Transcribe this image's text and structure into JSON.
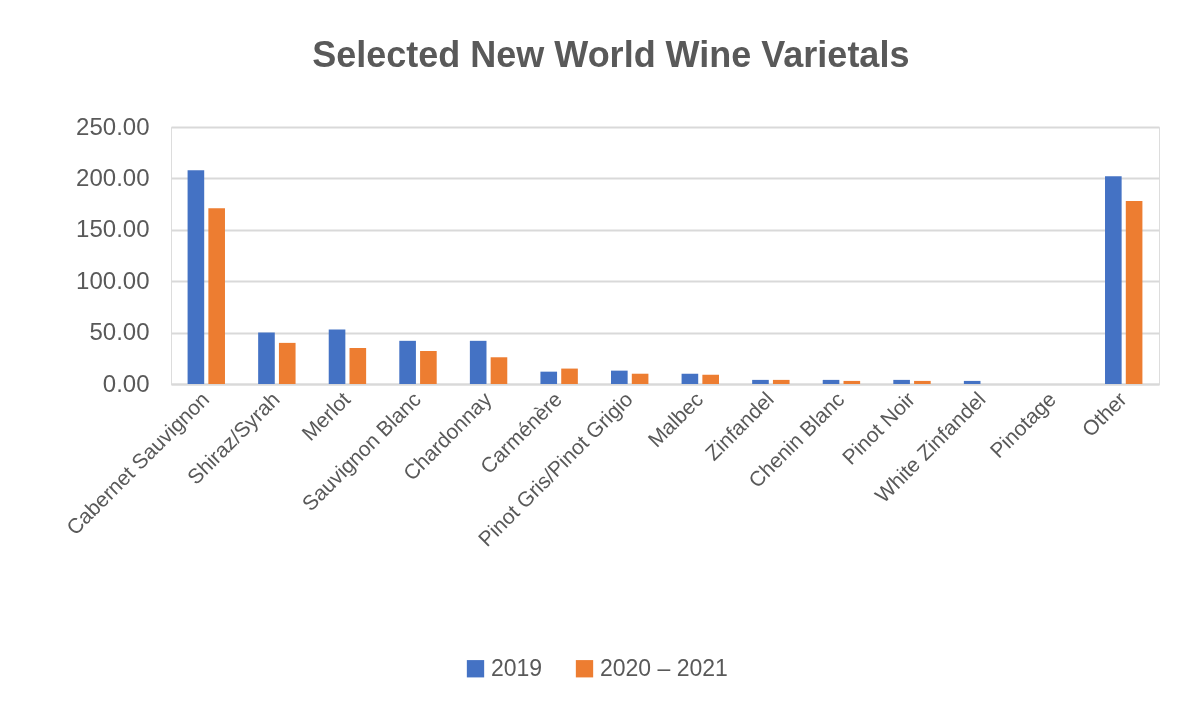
{
  "chart_data": {
    "type": "bar",
    "title": "Selected New World Wine Varietals",
    "categories": [
      "Cabernet Sauvignon",
      "Shiraz/Syrah",
      "Merlot",
      "Sauvignon Blanc",
      "Chardonnay",
      "Carménère",
      "Pinot Gris/Pinot Grigio",
      "Malbec",
      "Zinfandel",
      "Chenin Blanc",
      "Pinot Noir",
      "White Zinfandel",
      "Pinotage",
      "Other"
    ],
    "series": [
      {
        "name": "2019",
        "color": "#4472c4",
        "values": [
          208,
          50,
          53,
          42,
          42,
          12,
          13,
          10,
          4,
          4,
          4,
          3,
          0,
          202
        ]
      },
      {
        "name": "2020 – 2021",
        "color": "#ed7d31",
        "values": [
          171,
          40,
          35,
          32,
          26,
          15,
          10,
          9,
          4,
          3,
          3,
          0,
          0,
          178
        ]
      }
    ],
    "ylim": [
      0,
      250
    ],
    "yticks": [
      {
        "value": 0,
        "label": "0.00"
      },
      {
        "value": 50,
        "label": "50.00"
      },
      {
        "value": 100,
        "label": "100.00"
      },
      {
        "value": 150,
        "label": "150.00"
      },
      {
        "value": 200,
        "label": "200.00"
      },
      {
        "value": 250,
        "label": "250.00"
      }
    ],
    "grid": "y",
    "legend": "bottom"
  }
}
